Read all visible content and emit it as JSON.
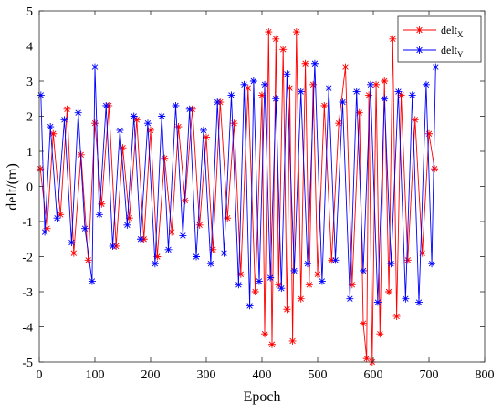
{
  "chart_data": {
    "type": "line",
    "marker": "asterisk",
    "xlabel": "Epoch",
    "ylabel": "delt/(m)",
    "xlim": [
      0,
      800
    ],
    "ylim": [
      -5,
      5
    ],
    "xticks": [
      "0",
      "100",
      "200",
      "300",
      "400",
      "500",
      "600",
      "700",
      "800"
    ],
    "yticks": [
      "5",
      "4",
      "3",
      "2",
      "1",
      "0",
      "-1",
      "-2",
      "-3",
      "-4",
      "-5"
    ],
    "box": true,
    "grid": false,
    "legend_placement": "top-right",
    "legend": [
      {
        "base": "delt",
        "sub": "X",
        "color": "#ff0000"
      },
      {
        "base": "delt",
        "sub": "Y",
        "color": "#0000ff"
      }
    ],
    "series": [
      {
        "key": "X",
        "color": "#ff0000",
        "x": [
          2,
          14,
          25,
          38,
          50,
          62,
          75,
          88,
          100,
          112,
          125,
          138,
          150,
          162,
          175,
          188,
          200,
          212,
          225,
          238,
          250,
          262,
          275,
          288,
          300,
          312,
          325,
          338,
          350,
          362,
          375,
          388,
          400,
          405,
          412,
          418,
          425,
          430,
          438,
          445,
          450,
          455,
          462,
          470,
          478,
          485,
          492,
          500,
          512,
          525,
          538,
          550,
          562,
          575,
          582,
          588,
          592,
          598,
          605,
          612,
          620,
          628,
          635,
          642,
          650,
          662,
          675,
          688,
          700,
          710
        ],
        "y": [
          0.5,
          -1.2,
          1.5,
          -0.8,
          2.2,
          -1.9,
          0.9,
          -2.1,
          1.8,
          -0.5,
          2.3,
          -1.7,
          1.1,
          -0.9,
          1.9,
          -1.5,
          1.6,
          -2.0,
          0.8,
          -1.3,
          1.7,
          -0.4,
          2.2,
          -1.1,
          1.4,
          -1.8,
          2.4,
          -0.9,
          1.8,
          -2.5,
          2.8,
          -3.0,
          2.6,
          -4.2,
          4.4,
          -4.5,
          4.2,
          -2.8,
          3.9,
          -3.5,
          2.8,
          -4.4,
          4.4,
          -3.2,
          3.5,
          -2.8,
          2.9,
          -2.5,
          2.3,
          -2.1,
          1.8,
          3.4,
          -2.8,
          2.1,
          -3.9,
          -4.9,
          2.6,
          -5.0,
          2.9,
          -4.2,
          3.0,
          -3.0,
          4.2,
          -3.7,
          2.6,
          -2.1,
          1.9,
          -1.9,
          1.5,
          0.5
        ]
      },
      {
        "key": "Y",
        "color": "#0000ff",
        "x": [
          3,
          10,
          20,
          32,
          45,
          58,
          70,
          82,
          95,
          100,
          108,
          120,
          132,
          145,
          158,
          170,
          182,
          195,
          208,
          220,
          232,
          245,
          258,
          270,
          282,
          295,
          308,
          320,
          332,
          345,
          358,
          368,
          378,
          385,
          395,
          405,
          415,
          425,
          435,
          445,
          458,
          470,
          482,
          495,
          508,
          520,
          532,
          545,
          558,
          570,
          582,
          595,
          608,
          620,
          632,
          645,
          658,
          670,
          682,
          695,
          705,
          712
        ],
        "y": [
          2.6,
          -1.3,
          1.7,
          -0.9,
          1.9,
          -1.6,
          2.1,
          -1.2,
          -2.7,
          3.4,
          -0.8,
          2.3,
          -1.7,
          1.6,
          -1.1,
          2.0,
          -1.5,
          1.8,
          -2.2,
          2.0,
          -1.8,
          2.3,
          -1.4,
          2.2,
          -2.0,
          1.6,
          -2.2,
          2.4,
          -1.9,
          2.6,
          -2.8,
          2.9,
          -3.4,
          3.0,
          -2.7,
          2.9,
          -2.6,
          2.5,
          -2.9,
          3.2,
          -2.4,
          2.7,
          -2.2,
          3.5,
          -2.7,
          2.8,
          -2.1,
          2.4,
          -3.2,
          2.7,
          -2.4,
          2.9,
          -3.3,
          2.5,
          -2.2,
          2.7,
          -3.2,
          2.6,
          -3.3,
          2.9,
          -2.2,
          3.4
        ]
      }
    ]
  }
}
